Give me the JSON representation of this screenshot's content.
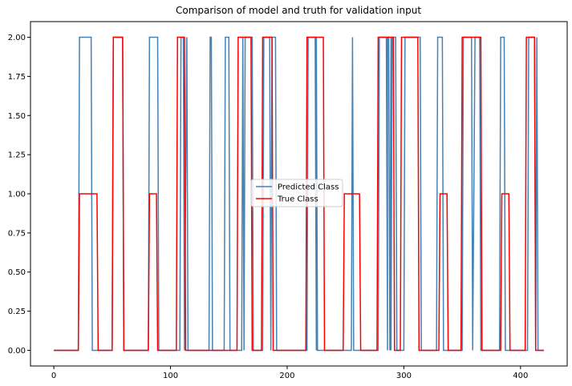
{
  "chart_data": {
    "type": "line",
    "title": "Comparison of model and truth for validation input",
    "xlabel": "",
    "ylabel": "",
    "xlim": [
      -20,
      440
    ],
    "ylim": [
      -0.1,
      2.1
    ],
    "xticks": [
      0,
      100,
      200,
      300,
      400
    ],
    "yticks": [
      0.0,
      0.25,
      0.5,
      0.75,
      1.0,
      1.25,
      1.5,
      1.75,
      2.0
    ],
    "ytick_labels": [
      "0.00",
      "0.25",
      "0.50",
      "0.75",
      "1.00",
      "1.25",
      "1.50",
      "1.75",
      "2.00"
    ],
    "xtick_labels": [
      "0",
      "100",
      "200",
      "300",
      "400"
    ],
    "grid": false,
    "legend_position": "center",
    "series": [
      {
        "name": "Predicted Class",
        "color": "#4682b4",
        "x": [
          0,
          21,
          22,
          32,
          33,
          50,
          51,
          59,
          60,
          81,
          82,
          89,
          90,
          108,
          109,
          111,
          112,
          114,
          115,
          133,
          134,
          135,
          136,
          146,
          147,
          150,
          151,
          161,
          162,
          163,
          164,
          170,
          171,
          179,
          180,
          185,
          186,
          187,
          188,
          190,
          191,
          217,
          218,
          224,
          225,
          225,
          226,
          255,
          256,
          256,
          257,
          278,
          279,
          285,
          286,
          286,
          287,
          288,
          289,
          289,
          290,
          293,
          294,
          300,
          301,
          314,
          315,
          328,
          329,
          333,
          334,
          350,
          351,
          358,
          359,
          361,
          362,
          365,
          366,
          382,
          383,
          386,
          387,
          406,
          407,
          412,
          413,
          414,
          415,
          420
        ],
        "y": [
          0,
          0,
          2,
          2,
          0,
          0,
          2,
          2,
          0,
          0,
          2,
          2,
          0,
          0,
          2,
          2,
          0,
          2,
          0,
          0,
          2,
          2,
          0,
          0,
          2,
          2,
          0,
          0,
          2,
          0,
          2,
          2,
          0,
          0,
          2,
          2,
          0,
          2,
          2,
          2,
          0,
          0,
          2,
          2,
          0,
          2,
          0,
          0,
          2,
          2,
          0,
          0,
          2,
          2,
          0,
          2,
          2,
          0,
          2,
          0,
          2,
          2,
          0,
          0,
          2,
          2,
          0,
          0,
          2,
          2,
          0,
          0,
          2,
          2,
          0,
          2,
          2,
          2,
          0,
          0,
          2,
          2,
          0,
          0,
          2,
          2,
          0,
          2,
          0,
          0
        ]
      },
      {
        "name": "True Class",
        "color": "#ff0000",
        "x": [
          0,
          21,
          22,
          37,
          38,
          50,
          51,
          59,
          60,
          81,
          82,
          88,
          89,
          105,
          106,
          112,
          113,
          157,
          158,
          169,
          170,
          178,
          179,
          187,
          188,
          216,
          217,
          231,
          232,
          248,
          249,
          262,
          263,
          277,
          278,
          291,
          292,
          297,
          298,
          312,
          313,
          330,
          331,
          337,
          338,
          349,
          350,
          366,
          367,
          383,
          384,
          390,
          391,
          404,
          405,
          412,
          413,
          420
        ],
        "y": [
          0,
          0,
          1,
          1,
          0,
          0,
          2,
          2,
          0,
          0,
          1,
          1,
          0,
          0,
          2,
          2,
          0,
          0,
          2,
          2,
          0,
          0,
          2,
          2,
          0,
          0,
          2,
          2,
          0,
          0,
          1,
          1,
          0,
          0,
          2,
          2,
          0,
          0,
          2,
          2,
          0,
          0,
          1,
          1,
          0,
          0,
          2,
          2,
          0,
          0,
          1,
          1,
          0,
          0,
          2,
          2,
          0,
          0
        ]
      }
    ]
  }
}
